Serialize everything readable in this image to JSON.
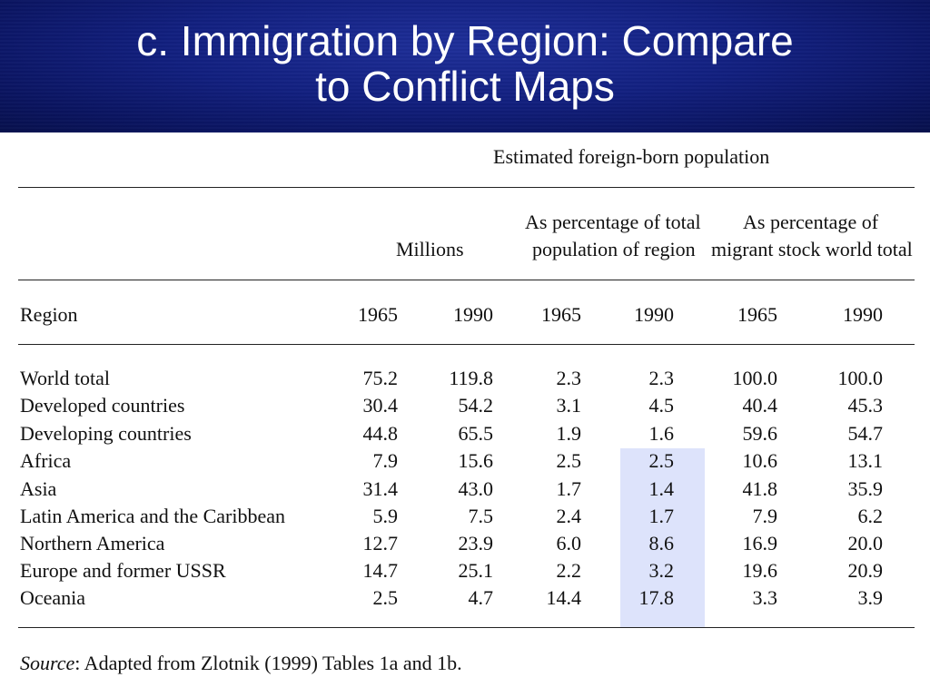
{
  "slide": {
    "title_line1": "c. Immigration by Region: Compare",
    "title_line2": "to Conflict Maps",
    "banner_color": "#122080"
  },
  "table": {
    "top_header": "Estimated foreign-born population",
    "group_millions": "Millions",
    "group_pct_region_line1": "As percentage of total",
    "group_pct_region_line2": "population of region",
    "group_pct_world_line1": "As percentage of",
    "group_pct_world_line2": "migrant stock world total",
    "region_header": "Region",
    "years": [
      "1965",
      "1990",
      "1965",
      "1990",
      "1965",
      "1990"
    ],
    "highlight_color": "#dde3fb",
    "rows": [
      {
        "region": "World total",
        "values": [
          "75.2",
          "119.8",
          "2.3",
          "2.3",
          "100.0",
          "100.0"
        ]
      },
      {
        "region": "Developed countries",
        "values": [
          "30.4",
          "54.2",
          "3.1",
          "4.5",
          "40.4",
          "45.3"
        ]
      },
      {
        "region": "Developing countries",
        "values": [
          "44.8",
          "65.5",
          "1.9",
          "1.6",
          "59.6",
          "54.7"
        ]
      },
      {
        "region": "Africa",
        "values": [
          "7.9",
          "15.6",
          "2.5",
          "2.5",
          "10.6",
          "13.1"
        ]
      },
      {
        "region": "Asia",
        "values": [
          "31.4",
          "43.0",
          "1.7",
          "1.4",
          "41.8",
          "35.9"
        ]
      },
      {
        "region": "Latin America and the Caribbean",
        "values": [
          "5.9",
          "7.5",
          "2.4",
          "1.7",
          "7.9",
          "6.2"
        ]
      },
      {
        "region": "Northern America",
        "values": [
          "12.7",
          "23.9",
          "6.0",
          "8.6",
          "16.9",
          "20.0"
        ]
      },
      {
        "region": "Europe and former USSR",
        "values": [
          "14.7",
          "25.1",
          "2.2",
          "3.2",
          "19.6",
          "20.9"
        ]
      },
      {
        "region": "Oceania",
        "values": [
          "2.5",
          "4.7",
          "14.4",
          "17.8",
          "3.3",
          "3.9"
        ]
      }
    ],
    "source_label": "Source",
    "source_text": ": Adapted from Zlotnik (1999) Tables 1a and 1b."
  }
}
